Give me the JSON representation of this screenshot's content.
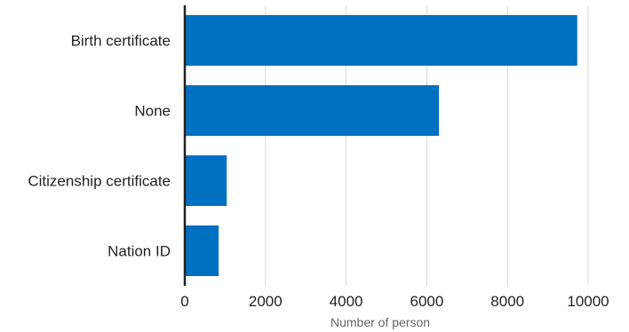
{
  "chart_data": {
    "type": "bar",
    "orientation": "horizontal",
    "categories": [
      "Birth certificate",
      "None",
      "Citizenship certificate",
      "Nation ID"
    ],
    "values": [
      9730,
      6300,
      1040,
      840
    ],
    "title": "",
    "xlabel": "Number of person",
    "ylabel": "",
    "xlim": [
      0,
      10800
    ],
    "xticks": [
      "0",
      "2000",
      "4000",
      "6000",
      "8000",
      "10000"
    ],
    "grid": "vertical",
    "bar_color": "#0070c0"
  }
}
